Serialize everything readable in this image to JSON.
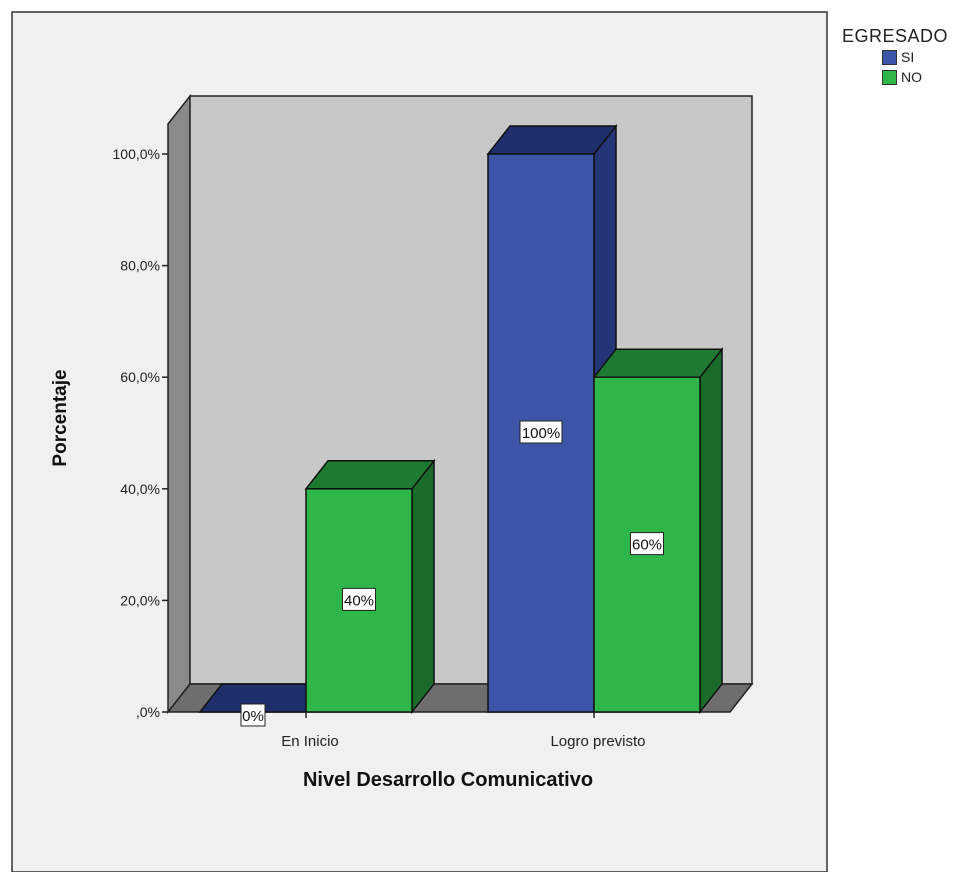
{
  "chart_data": {
    "type": "bar",
    "title": "",
    "xlabel": "Nivel Desarrollo Comunicativo",
    "ylabel": "Porcentaje",
    "ylim": [
      0,
      100
    ],
    "y_ticks": [
      ",0%",
      "20,0%",
      "40,0%",
      "60,0%",
      "80,0%",
      "100,0%"
    ],
    "categories": [
      "En Inicio",
      "Logro previsto"
    ],
    "legend_title": "EGRESADO",
    "legend_position": "top-right",
    "grid": false,
    "series": [
      {
        "name": "SI",
        "values": [
          0,
          100
        ],
        "labels": [
          "0%",
          "100%"
        ],
        "color": "#3C55A8",
        "top_color": "#1F2F6B",
        "side_color": "#243477"
      },
      {
        "name": "NO",
        "values": [
          40,
          60
        ],
        "labels": [
          "40%",
          "60%"
        ],
        "color": "#2EB648",
        "top_color": "#1E7A30",
        "side_color": "#1A6B2A"
      }
    ]
  },
  "colors": {
    "background": "#F0F0F0",
    "plot_wall": "#C8C8C8",
    "side_wall": "#8A8A8A",
    "floor": "#6E6E6E"
  }
}
